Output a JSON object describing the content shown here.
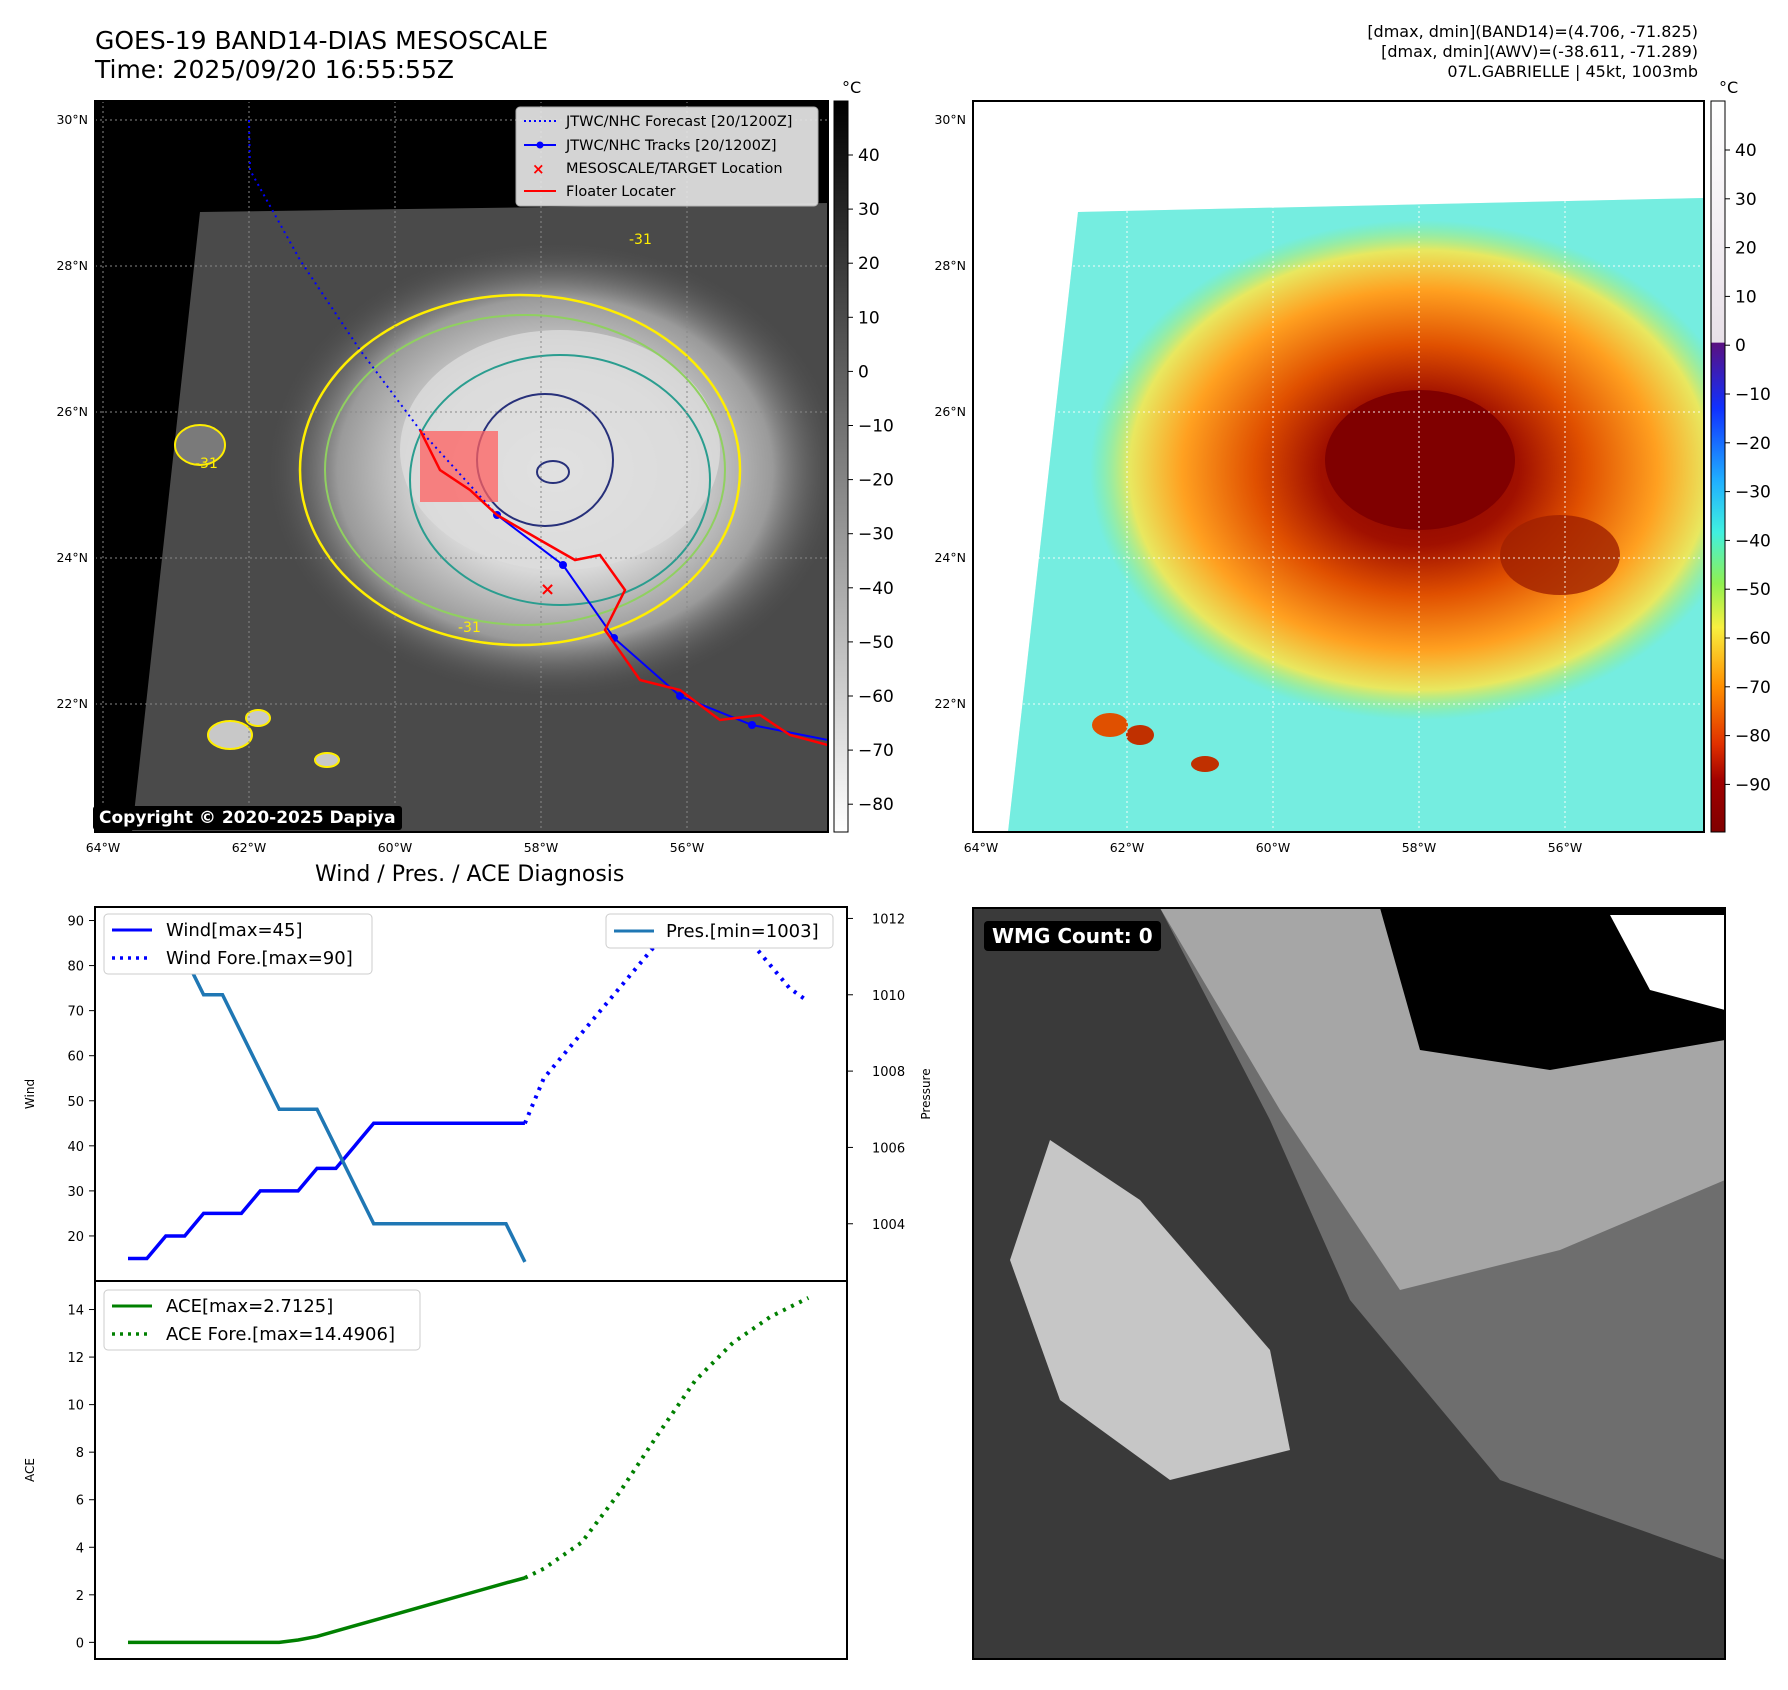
{
  "header": {
    "title_line1": "GOES-19 BAND14-DIAS MESOSCALE",
    "title_line2": "Time: 2025/09/20 16:55:55Z",
    "info_line1": "[dmax, dmin](BAND14)=(4.706, -71.825)",
    "info_line2": "[dmax, dmin](AWV)=(-38.611, -71.289)",
    "info_line3": "07L.GABRIELLE | 45kt, 1003mb"
  },
  "maps": {
    "lat_labels": [
      "30°N",
      "28°N",
      "26°N",
      "24°N",
      "22°N"
    ],
    "lon_labels": [
      "64°W",
      "62°W",
      "60°W",
      "58°W",
      "56°W"
    ],
    "legend": [
      {
        "label": "JTWC/NHC Forecast [20/1200Z]",
        "style": "dotted",
        "color": "#0000ff"
      },
      {
        "label": "JTWC/NHC Tracks [20/1200Z]",
        "style": "line-dot",
        "color": "#0000ff"
      },
      {
        "label": "MESOSCALE/TARGET Location",
        "style": "x",
        "color": "#ff0000"
      },
      {
        "label": "Floater Locater",
        "style": "line",
        "color": "#ff0000"
      }
    ],
    "contour_labels": [
      "-31",
      "-31",
      "-31"
    ],
    "copyright": "Copyright © 2020-2025 Dapiya",
    "colorbar1": {
      "unit": "°C",
      "ticks": [
        "40",
        "30",
        "20",
        "10",
        "0",
        "−10",
        "−20",
        "−30",
        "−40",
        "−50",
        "−60",
        "−70",
        "−80"
      ]
    },
    "colorbar2": {
      "unit": "°C",
      "ticks": [
        "40",
        "30",
        "20",
        "10",
        "0",
        "−10",
        "−20",
        "−30",
        "−40",
        "−50",
        "−60",
        "−70",
        "−80",
        "−90"
      ]
    },
    "colors": {
      "track": "#0000ff",
      "floater": "#ff0000",
      "contour_yellow": "#ffee00",
      "contour_green": "#90d060",
      "contour_teal": "#2a9d8f",
      "contour_navy": "#27307a"
    }
  },
  "wmg": {
    "label": "WMG Count: 0"
  },
  "chart_data": [
    {
      "type": "line",
      "title": "Wind / Pres. / ACE Diagnosis",
      "ylabel": "Wind",
      "ylabel_right": "Pressure",
      "ylim": [
        10,
        93
      ],
      "ylim_right": [
        1002.5,
        1012.3
      ],
      "yticks": [
        20,
        30,
        40,
        50,
        60,
        70,
        80,
        90
      ],
      "yticks_right": [
        1004,
        1006,
        1008,
        1010,
        1012
      ],
      "series": [
        {
          "name": "Wind[max=45]",
          "axis": "left",
          "style": "solid",
          "color": "#0000ff",
          "x": [
            0,
            1,
            2,
            3,
            4,
            5,
            6,
            7,
            8,
            9,
            10,
            11,
            12,
            13,
            14,
            15,
            16,
            17,
            18,
            19,
            20,
            21
          ],
          "values": [
            15,
            15,
            20,
            20,
            25,
            25,
            25,
            30,
            30,
            30,
            35,
            35,
            40,
            45,
            45,
            45,
            45,
            45,
            45,
            45,
            45,
            45
          ]
        },
        {
          "name": "Wind Fore.[max=90]",
          "axis": "left",
          "style": "dotted",
          "color": "#0000ff",
          "x": [
            21,
            22,
            23,
            24,
            25,
            26,
            27,
            28,
            29,
            30,
            31,
            32,
            33,
            34,
            35,
            36
          ],
          "values": [
            45,
            55,
            60,
            65,
            70,
            75,
            80,
            85,
            90,
            90,
            90,
            85,
            85,
            80,
            75,
            72
          ]
        },
        {
          "name": "Pres.[min=1003]",
          "axis": "right",
          "style": "solid",
          "color": "#1f77b4",
          "x": [
            0,
            1,
            2,
            3,
            4,
            5,
            6,
            7,
            8,
            9,
            10,
            11,
            12,
            13,
            14,
            15,
            16,
            17,
            18,
            19,
            20,
            21
          ],
          "values": [
            1012,
            1012,
            1011,
            1011,
            1010,
            1010,
            1009,
            1008,
            1007,
            1007,
            1007,
            1006,
            1005,
            1004,
            1004,
            1004,
            1004,
            1004,
            1004,
            1004,
            1004,
            1003
          ]
        }
      ]
    },
    {
      "type": "line",
      "ylabel": "ACE",
      "ylim": [
        -0.7,
        15.2
      ],
      "yticks": [
        0,
        2,
        4,
        6,
        8,
        10,
        12,
        14
      ],
      "series": [
        {
          "name": "ACE[max=2.7125]",
          "style": "solid",
          "color": "#008000",
          "x": [
            0,
            2,
            4,
            6,
            8,
            9,
            10,
            12,
            14,
            16,
            18,
            20,
            21
          ],
          "values": [
            0,
            0,
            0,
            0,
            0,
            0.1,
            0.25,
            0.7,
            1.15,
            1.6,
            2.05,
            2.5,
            2.7125
          ]
        },
        {
          "name": "ACE Fore.[max=14.4906]",
          "style": "dotted",
          "color": "#008000",
          "x": [
            21,
            22,
            24,
            26,
            28,
            30,
            32,
            34,
            36
          ],
          "values": [
            2.7125,
            3.1,
            4.2,
            6.3,
            8.7,
            11.0,
            12.6,
            13.7,
            14.4906
          ]
        }
      ]
    }
  ]
}
